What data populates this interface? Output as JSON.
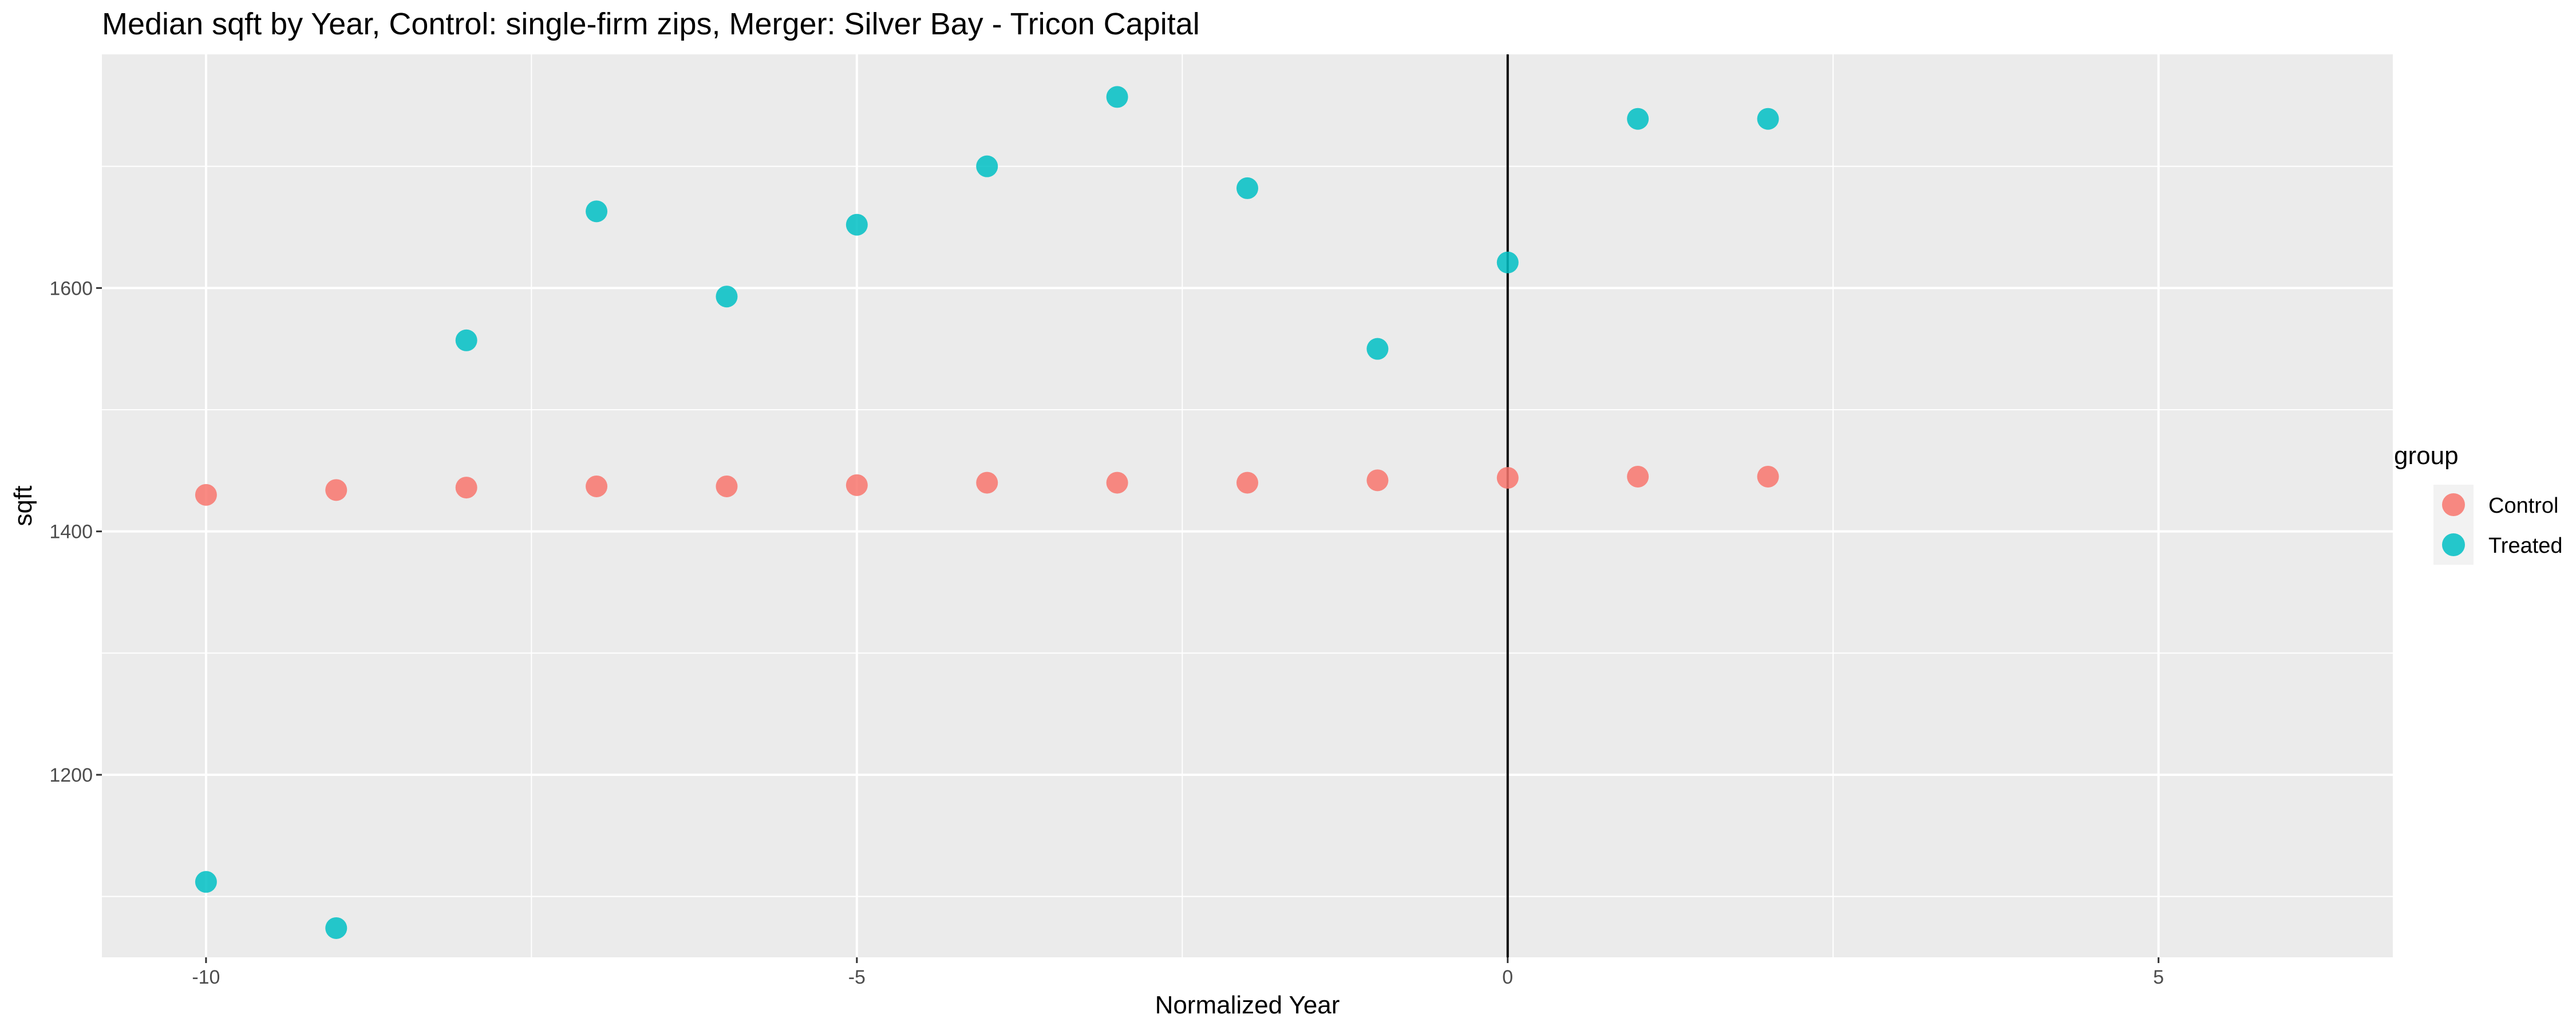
{
  "chart_data": {
    "type": "scatter",
    "title": "Median sqft by Year, Control: single-firm zips, Merger: Silver Bay - Tricon Capital",
    "xlabel": "Normalized Year",
    "ylabel": "sqft",
    "xlim": [
      -10.8,
      6.8
    ],
    "ylim": [
      1050,
      1792
    ],
    "xticks": [
      -10,
      -5,
      0,
      5
    ],
    "xtick_labels": [
      "-10",
      "-5",
      "0",
      "5"
    ],
    "yticks": [
      1200,
      1400,
      1600
    ],
    "ytick_labels": [
      "1200",
      "1400",
      "1600"
    ],
    "vline_x": 0,
    "grid": true,
    "legend": {
      "title": "group",
      "position": "right"
    },
    "series": [
      {
        "name": "Control",
        "color": "#F8766D",
        "x": [
          -10,
          -9,
          -8,
          -7,
          -6,
          -5,
          -4,
          -3,
          -2,
          -1,
          0,
          1,
          2
        ],
        "y": [
          1430,
          1434,
          1436,
          1437,
          1437,
          1438,
          1440,
          1440,
          1440,
          1442,
          1444,
          1445,
          1445
        ]
      },
      {
        "name": "Treated",
        "color": "#00BFC4",
        "x": [
          -10,
          -9,
          -8,
          -7,
          -6,
          -5,
          -4,
          -3,
          -2,
          -1,
          0,
          1,
          2
        ],
        "y": [
          1112,
          1074,
          1557,
          1663,
          1593,
          1652,
          1700,
          1757,
          1682,
          1550,
          1621,
          1739,
          1739
        ]
      }
    ]
  }
}
